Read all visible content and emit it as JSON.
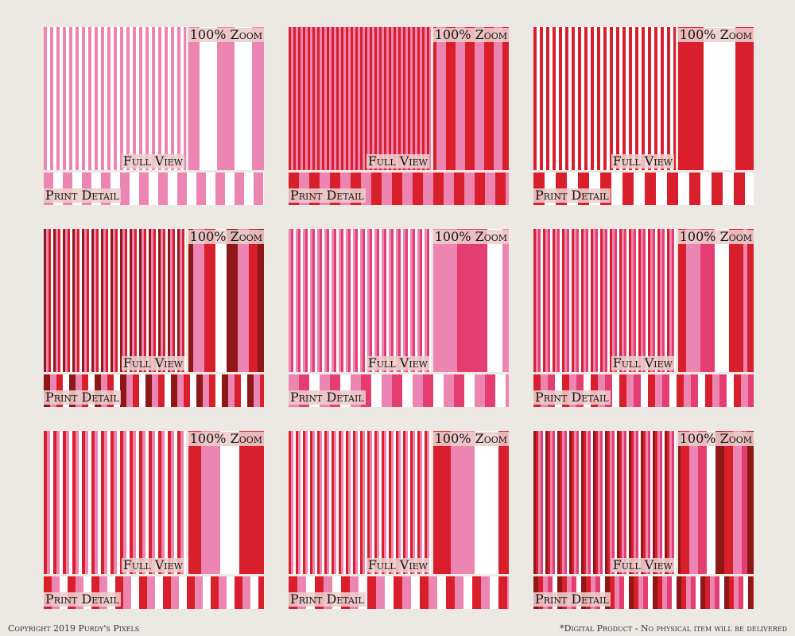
{
  "labels": {
    "zoom": "100% Zoom",
    "full_view": "Full View",
    "print_detail": "Print Detail"
  },
  "footer": {
    "copyright": "Copyright 2019 Purdy's Pixels",
    "note": "*Digital Product - No physical item will be delivered"
  },
  "palette": {
    "white": "#ffffff",
    "pink": "#ec85b1",
    "hot_pink": "#e43d72",
    "red": "#da1f2c",
    "maroon": "#8e1717"
  },
  "patterns": [
    {
      "name": "pink-white-stripe",
      "stripes": [
        "pink",
        "white"
      ]
    },
    {
      "name": "red-pink-stripe",
      "stripes": [
        "red",
        "pink"
      ]
    },
    {
      "name": "red-white-stripe",
      "stripes": [
        "red",
        "white"
      ]
    },
    {
      "name": "maroon-pink-red-white-stripe",
      "stripes": [
        "maroon",
        "pink",
        "red",
        "white"
      ]
    },
    {
      "name": "pink-hotpink-white-stripe",
      "stripes": [
        "pink",
        "hot_pink",
        "white"
      ]
    },
    {
      "name": "red-pink-hotpink-white-stripe",
      "stripes": [
        "red",
        "pink",
        "hot_pink",
        "white"
      ]
    },
    {
      "name": "red-pink-white-stripe",
      "stripes": [
        "red",
        "pink",
        "white"
      ]
    },
    {
      "name": "red-pink-white-thin-stripe",
      "stripes": [
        "red",
        "pink",
        "white"
      ]
    },
    {
      "name": "maroon-red-pink-hotpink-stripe",
      "stripes": [
        "maroon",
        "red",
        "pink",
        "hot_pink",
        "white"
      ]
    }
  ]
}
